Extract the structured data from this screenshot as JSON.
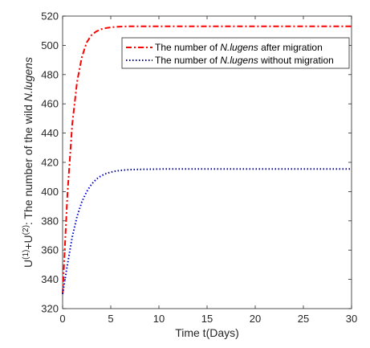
{
  "chart_data": {
    "type": "line",
    "xlabel": "Time t(Days)",
    "ylabel_parts": [
      "U",
      "(1)",
      "+U",
      "(2)",
      ": The number of the wild ",
      "N.lugens"
    ],
    "xlim": [
      0,
      30
    ],
    "ylim": [
      320,
      520
    ],
    "x_ticks": [
      "0",
      "5",
      "10",
      "15",
      "20",
      "25",
      "30"
    ],
    "y_ticks": [
      "320",
      "340",
      "360",
      "380",
      "400",
      "420",
      "440",
      "460",
      "480",
      "500",
      "520"
    ],
    "grid": false,
    "legend_position": "top-right",
    "x": [
      0,
      0.5,
      1,
      1.5,
      2,
      2.5,
      3,
      3.5,
      4,
      4.5,
      5,
      5.5,
      6,
      6.5,
      7,
      7.5,
      8,
      9,
      10,
      11,
      12,
      15,
      20,
      25,
      30
    ],
    "series": [
      {
        "legend": [
          "The number of ",
          "N.lugens",
          " after migration"
        ],
        "color": "#ff0000",
        "dash": "dashdot",
        "values": [
          330,
          398,
          446,
          475,
          492,
          502,
          507,
          509.5,
          511,
          511.8,
          512.3,
          512.6,
          512.8,
          512.9,
          513,
          513,
          513,
          513,
          513,
          513,
          513,
          513,
          513,
          513,
          513
        ]
      },
      {
        "legend": [
          "The number of ",
          "N.lugens",
          " without migration"
        ],
        "color": "#0000cc",
        "dash": "dotted",
        "values": [
          330,
          350,
          369,
          383,
          393,
          400,
          405,
          408.5,
          410.8,
          412.3,
          413.3,
          414,
          414.5,
          414.8,
          415,
          415.1,
          415.2,
          415.3,
          415.4,
          415.5,
          415.5,
          415.5,
          415.5,
          415.5,
          415.5
        ]
      }
    ]
  }
}
